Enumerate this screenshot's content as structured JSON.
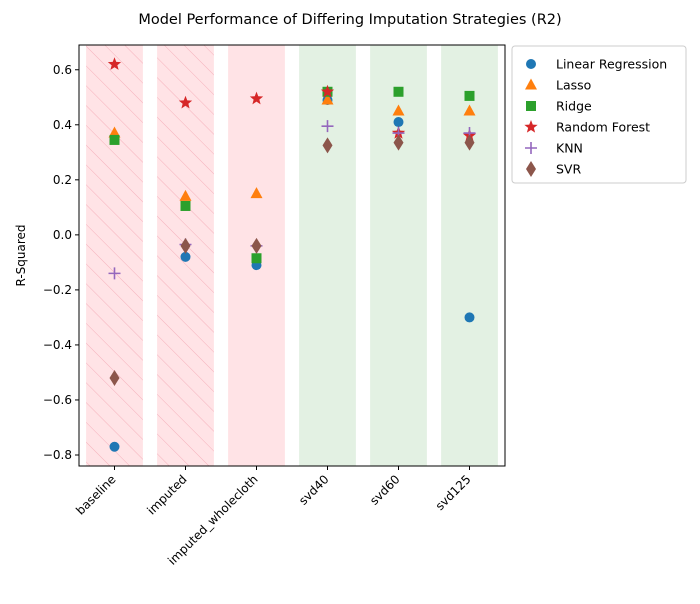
{
  "chart_data": {
    "type": "scatter",
    "title": "Model Performance of Differing Imputation Strategies (R2)",
    "xlabel": "",
    "ylabel": "R-Squared",
    "categories": [
      "baseline",
      "imputed",
      "imputed_wholecloth",
      "svd40",
      "svd60",
      "svd125"
    ],
    "ylim": [
      -0.84,
      0.69
    ],
    "yticks": [
      -0.8,
      -0.6,
      -0.4,
      -0.2,
      0.0,
      0.2,
      0.4,
      0.6
    ],
    "ytick_labels": [
      "−0.8",
      "−0.6",
      "−0.4",
      "−0.2",
      "0.0",
      "0.2",
      "0.4",
      "0.6"
    ],
    "grid": false,
    "legend_position": "outside-right",
    "category_shading": {
      "baseline": "red-hatched",
      "imputed": "red-hatched",
      "imputed_wholecloth": "red",
      "svd40": "green",
      "svd60": "green",
      "svd125": "green"
    },
    "series": [
      {
        "name": "Linear Regression",
        "marker": "circle",
        "color": "#1f77b4",
        "values": [
          -0.77,
          -0.08,
          -0.11,
          0.49,
          0.41,
          -0.3
        ]
      },
      {
        "name": "Lasso",
        "marker": "triangle",
        "color": "#ff7f0e",
        "values": [
          0.37,
          0.14,
          0.15,
          0.49,
          0.45,
          0.45
        ]
      },
      {
        "name": "Ridge",
        "marker": "square",
        "color": "#2ca02c",
        "values": [
          0.345,
          0.105,
          -0.085,
          0.52,
          0.52,
          0.505
        ]
      },
      {
        "name": "Random Forest",
        "marker": "star",
        "color": "#d62728",
        "values": [
          0.62,
          0.48,
          0.495,
          0.52,
          0.37,
          0.36
        ]
      },
      {
        "name": "KNN",
        "marker": "plus",
        "color": "#9467bd",
        "values": [
          -0.14,
          -0.035,
          -0.04,
          0.395,
          0.37,
          0.37
        ]
      },
      {
        "name": "SVR",
        "marker": "diamond",
        "color": "#8c564b",
        "values": [
          -0.52,
          -0.04,
          -0.04,
          0.325,
          0.335,
          0.335
        ]
      }
    ]
  }
}
